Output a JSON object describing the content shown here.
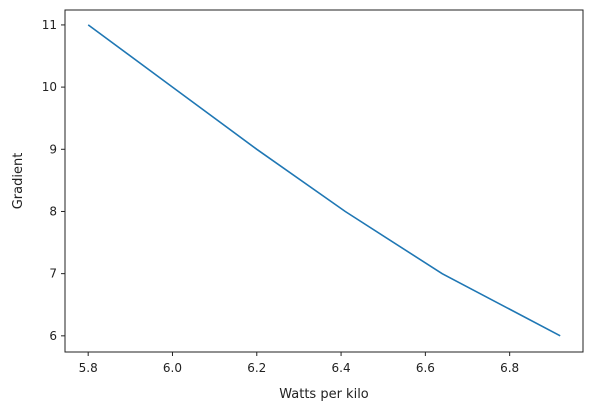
{
  "chart_data": {
    "type": "line",
    "title": "",
    "xlabel": "Watts per kilo",
    "ylabel": "Gradient",
    "xlim": [
      5.745,
      6.974
    ],
    "ylim": [
      5.74,
      11.24
    ],
    "xticks": [
      "5.8",
      "6.0",
      "6.2",
      "6.4",
      "6.6",
      "6.8"
    ],
    "yticks": [
      "6",
      "7",
      "8",
      "9",
      "10",
      "11"
    ],
    "grid": false,
    "series": [
      {
        "color": "#1f77b4",
        "x": [
          5.8,
          6.0,
          6.2,
          6.41,
          6.64,
          6.92
        ],
        "y": [
          11,
          10,
          9,
          8,
          7,
          6
        ]
      }
    ]
  }
}
